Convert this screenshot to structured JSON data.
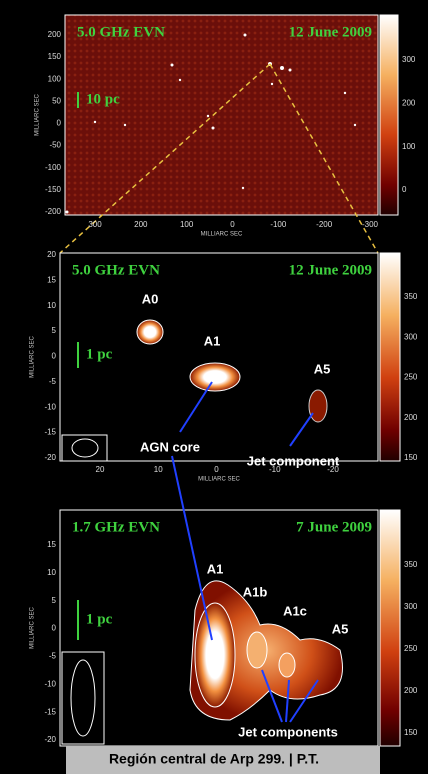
{
  "figure": {
    "axis_label": "MILLIARC SEC",
    "caption": "Región central de Arp 299. | P.T.",
    "panels": [
      {
        "title": "5.0 GHz EVN",
        "date": "12 June 2009",
        "scale_label": "10 pc",
        "yticks": [
          "200",
          "150",
          "100",
          "50",
          "0",
          "-50",
          "-100",
          "-150",
          "-200"
        ],
        "xticks": [
          "300",
          "200",
          "100",
          "0",
          "-100",
          "-200",
          "-300"
        ],
        "colorbar_ticks": [
          "300",
          "200",
          "100",
          "0"
        ],
        "annotations": []
      },
      {
        "title": "5.0 GHz EVN",
        "date": "12 June 2009",
        "scale_label": "1 pc",
        "yticks": [
          "20",
          "15",
          "10",
          "5",
          "0",
          "-5",
          "-10",
          "-15",
          "-20"
        ],
        "xticks": [
          "20",
          "10",
          "0",
          "-10",
          "-20"
        ],
        "colorbar_ticks": [
          "350",
          "300",
          "250",
          "200",
          "150"
        ],
        "annotations": [
          "A0",
          "A1",
          "A5",
          "AGN core",
          "Jet component"
        ]
      },
      {
        "title": "1.7 GHz EVN",
        "date": "7 June 2009",
        "scale_label": "1 pc",
        "yticks": [
          "15",
          "10",
          "5",
          "0",
          "-5",
          "-10",
          "-15",
          "-20"
        ],
        "xticks": [],
        "colorbar_ticks": [
          "350",
          "300",
          "250",
          "200",
          "150"
        ],
        "annotations": [
          "A1",
          "A1b",
          "A1c",
          "A5",
          "Jet components"
        ]
      }
    ]
  }
}
